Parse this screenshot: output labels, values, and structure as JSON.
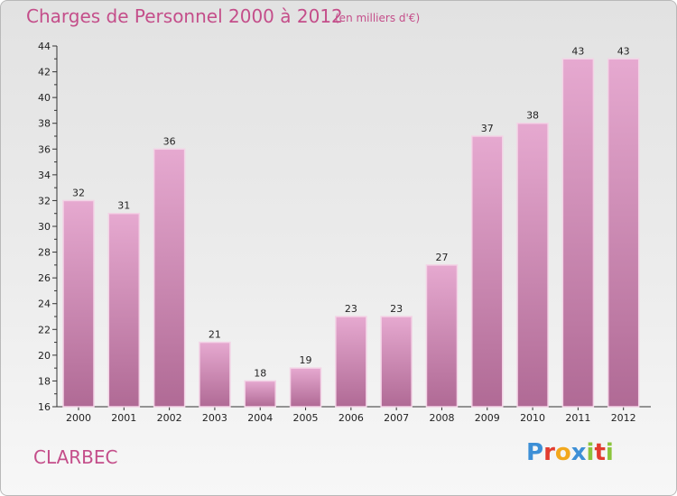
{
  "title": "Charges de Personnel 2000 à 2012",
  "subtitle": "(en milliers d'€)",
  "commune": "CLARBEC",
  "logo": {
    "text": "Proxiti",
    "letters": [
      "P",
      "r",
      "o",
      "x",
      "i",
      "t",
      "i"
    ],
    "colors": [
      "#3d8fd6",
      "#e23c2f",
      "#f2a81d",
      "#3d8fd6",
      "#8cc43c",
      "#e23c2f",
      "#8cc43c"
    ]
  },
  "colors": {
    "bar_top": "#e6a9d0",
    "bar_bottom": "#b06a95",
    "title": "#c44e8a"
  },
  "chart_data": {
    "type": "bar",
    "title": "Charges de Personnel 2000 à 2012",
    "subtitle": "(en milliers d'€)",
    "xlabel": "",
    "ylabel": "",
    "categories": [
      "2000",
      "2001",
      "2002",
      "2003",
      "2004",
      "2005",
      "2006",
      "2007",
      "2008",
      "2009",
      "2010",
      "2011",
      "2012"
    ],
    "values": [
      32,
      31,
      36,
      21,
      18,
      19,
      23,
      23,
      27,
      37,
      38,
      43,
      43
    ],
    "ylim": [
      16,
      44
    ],
    "yticks": [
      16,
      18,
      20,
      22,
      24,
      26,
      28,
      30,
      32,
      34,
      36,
      38,
      40,
      42,
      44
    ],
    "grid": false,
    "data_labels": true
  }
}
